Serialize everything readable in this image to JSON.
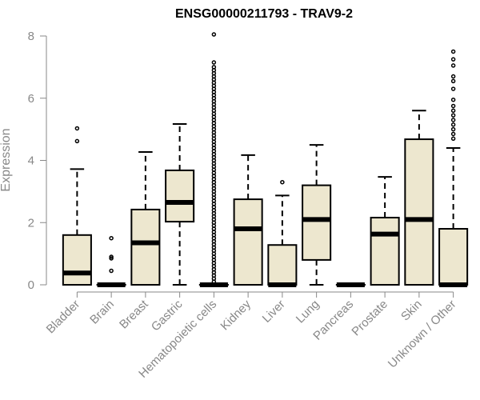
{
  "chart_data": {
    "type": "boxplot",
    "title": "ENSG00000211793 - TRAV9-2",
    "xlabel": "",
    "ylabel": "Expression",
    "ylim": [
      0,
      8
    ],
    "yticks": [
      0,
      2,
      4,
      6,
      8
    ],
    "grid": false,
    "legend": "none",
    "box_fill": "#ede7cf",
    "stroke_color": "#000000",
    "axis_color": "#888888",
    "categories": [
      "Bladder",
      "Brain",
      "Breast",
      "Gastric",
      "Hematopoietic cells",
      "Kidney",
      "Liver",
      "Lung",
      "Pancreas",
      "Prostate",
      "Skin",
      "Unknown / Other"
    ],
    "boxes": [
      {
        "category": "Bladder",
        "whisker_low": 0,
        "q1": 0,
        "median": 0.38,
        "q3": 1.6,
        "whisker_high": 3.72,
        "outliers": [
          4.62,
          5.03
        ]
      },
      {
        "category": "Brain",
        "whisker_low": 0,
        "q1": 0,
        "median": 0,
        "q3": 0,
        "whisker_high": 0,
        "outliers": [
          0.45,
          0.85,
          0.9,
          1.5
        ]
      },
      {
        "category": "Breast",
        "whisker_low": 0,
        "q1": 0,
        "median": 1.35,
        "q3": 2.42,
        "whisker_high": 4.27,
        "outliers": []
      },
      {
        "category": "Gastric",
        "whisker_low": 0,
        "q1": 2.03,
        "median": 2.65,
        "q3": 3.68,
        "whisker_high": 5.17,
        "outliers": []
      },
      {
        "category": "Hematopoietic cells",
        "whisker_low": 0,
        "q1": 0,
        "median": 0,
        "q3": 0,
        "whisker_high": 0,
        "outliers": [
          0.1,
          0.2,
          0.3,
          0.4,
          0.5,
          0.6,
          0.7,
          0.8,
          0.9,
          1.0,
          1.1,
          1.2,
          1.3,
          1.4,
          1.5,
          1.6,
          1.7,
          1.8,
          1.9,
          2.0,
          2.1,
          2.2,
          2.3,
          2.4,
          2.5,
          2.6,
          2.7,
          2.8,
          2.9,
          3.0,
          3.1,
          3.2,
          3.3,
          3.4,
          3.5,
          3.6,
          3.7,
          3.8,
          3.9,
          4.0,
          4.1,
          4.2,
          4.3,
          4.4,
          4.5,
          4.6,
          4.7,
          4.8,
          4.9,
          5.0,
          5.1,
          5.2,
          5.3,
          5.4,
          5.5,
          5.6,
          5.7,
          5.8,
          5.9,
          6.0,
          6.1,
          6.2,
          6.3,
          6.4,
          6.5,
          6.6,
          6.7,
          6.8,
          6.9,
          7.0,
          7.15,
          8.05
        ]
      },
      {
        "category": "Kidney",
        "whisker_low": 0,
        "q1": 0,
        "median": 1.8,
        "q3": 2.75,
        "whisker_high": 4.17,
        "outliers": []
      },
      {
        "category": "Liver",
        "whisker_low": 0,
        "q1": 0,
        "median": 0,
        "q3": 1.28,
        "whisker_high": 2.87,
        "outliers": [
          3.3
        ]
      },
      {
        "category": "Lung",
        "whisker_low": 0,
        "q1": 0.8,
        "median": 2.1,
        "q3": 3.2,
        "whisker_high": 4.5,
        "outliers": []
      },
      {
        "category": "Pancreas",
        "whisker_low": 0,
        "q1": 0,
        "median": 0,
        "q3": 0,
        "whisker_high": 0,
        "outliers": []
      },
      {
        "category": "Prostate",
        "whisker_low": 0,
        "q1": 0,
        "median": 1.63,
        "q3": 2.16,
        "whisker_high": 3.47,
        "outliers": []
      },
      {
        "category": "Skin",
        "whisker_low": 0,
        "q1": 0,
        "median": 2.1,
        "q3": 4.68,
        "whisker_high": 5.6,
        "outliers": []
      },
      {
        "category": "Unknown / Other",
        "whisker_low": 0,
        "q1": 0,
        "median": 0,
        "q3": 1.8,
        "whisker_high": 4.4,
        "outliers": [
          4.7,
          4.85,
          5.0,
          5.15,
          5.3,
          5.45,
          5.6,
          5.75,
          5.95,
          6.3,
          6.55,
          6.7,
          7.05,
          7.25,
          7.5
        ]
      }
    ]
  }
}
